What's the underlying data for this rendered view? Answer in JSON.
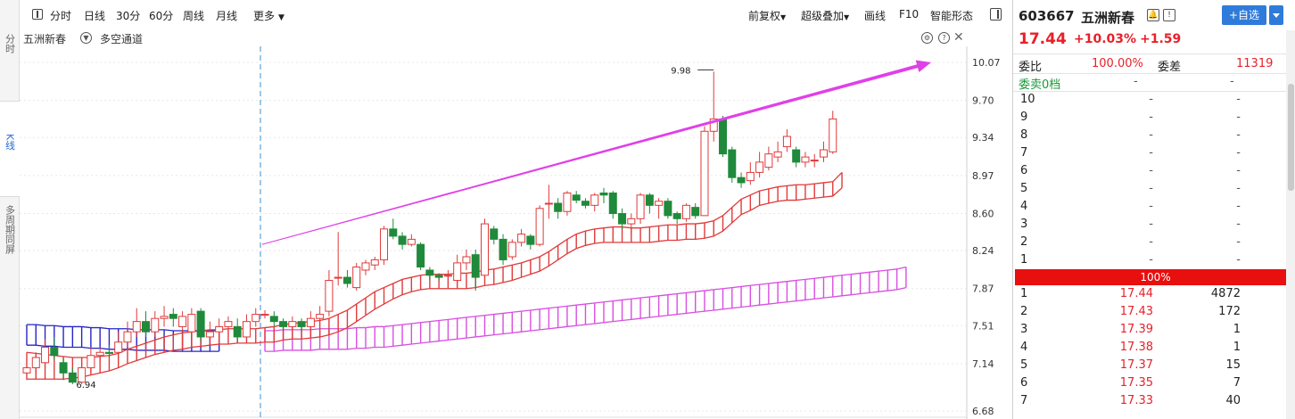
{
  "left_tabs": [
    {
      "label": "分时"
    },
    {
      "label": "K线"
    },
    {
      "label": "多周期同屏"
    }
  ],
  "toolbar": {
    "periods": [
      "分时",
      "日线",
      "30分",
      "60分",
      "周线",
      "月线"
    ],
    "more": "更多",
    "right_items": [
      "前复权",
      "超级叠加",
      "画线",
      "F10",
      "智能形态"
    ]
  },
  "sub_header": {
    "stock_name": "五洲新春",
    "indicator": "多空通道"
  },
  "chart_data": {
    "type": "candlestick",
    "y_axis_labels": [
      "10.07",
      "9.70",
      "9.34",
      "8.97",
      "8.60",
      "8.24",
      "7.87",
      "7.51",
      "7.14",
      "6.68"
    ],
    "ylim": [
      6.68,
      10.07
    ],
    "annotations": {
      "high": "9.98",
      "low": "6.94"
    },
    "candles": [
      {
        "o": 7.05,
        "c": 7.1,
        "h": 7.15,
        "l": 6.98
      },
      {
        "o": 7.1,
        "c": 7.2,
        "h": 7.25,
        "l": 7.05
      },
      {
        "o": 7.15,
        "c": 7.3,
        "h": 7.38,
        "l": 7.1
      },
      {
        "o": 7.3,
        "c": 7.22,
        "h": 7.4,
        "l": 7.18
      },
      {
        "o": 7.15,
        "c": 7.05,
        "h": 7.2,
        "l": 6.98
      },
      {
        "o": 7.05,
        "c": 6.96,
        "h": 7.1,
        "l": 6.94
      },
      {
        "o": 6.96,
        "c": 7.1,
        "h": 7.2,
        "l": 6.94
      },
      {
        "o": 7.1,
        "c": 7.22,
        "h": 7.3,
        "l": 7.05
      },
      {
        "o": 7.22,
        "c": 7.25,
        "h": 7.3,
        "l": 7.15
      },
      {
        "o": 7.25,
        "c": 7.24,
        "h": 7.32,
        "l": 7.2
      },
      {
        "o": 7.25,
        "c": 7.35,
        "h": 7.45,
        "l": 7.2
      },
      {
        "o": 7.35,
        "c": 7.45,
        "h": 7.55,
        "l": 7.3
      },
      {
        "o": 7.45,
        "c": 7.55,
        "h": 7.68,
        "l": 7.4
      },
      {
        "o": 7.55,
        "c": 7.45,
        "h": 7.65,
        "l": 7.4
      },
      {
        "o": 7.45,
        "c": 7.58,
        "h": 7.65,
        "l": 7.4
      },
      {
        "o": 7.58,
        "c": 7.6,
        "h": 7.7,
        "l": 7.5
      },
      {
        "o": 7.62,
        "c": 7.58,
        "h": 7.68,
        "l": 7.5
      },
      {
        "o": 7.5,
        "c": 7.6,
        "h": 7.65,
        "l": 7.45
      },
      {
        "o": 7.45,
        "c": 7.62,
        "h": 7.68,
        "l": 7.4
      },
      {
        "o": 7.65,
        "c": 7.4,
        "h": 7.68,
        "l": 7.35
      },
      {
        "o": 7.4,
        "c": 7.45,
        "h": 7.55,
        "l": 7.35
      },
      {
        "o": 7.45,
        "c": 7.5,
        "h": 7.58,
        "l": 7.4
      },
      {
        "o": 7.5,
        "c": 7.55,
        "h": 7.6,
        "l": 7.45
      },
      {
        "o": 7.5,
        "c": 7.4,
        "h": 7.58,
        "l": 7.35
      },
      {
        "o": 7.4,
        "c": 7.55,
        "h": 7.62,
        "l": 7.35
      },
      {
        "o": 7.55,
        "c": 7.62,
        "h": 7.68,
        "l": 7.5
      },
      {
        "o": 7.62,
        "c": 7.62,
        "h": 7.66,
        "l": 7.58
      },
      {
        "o": 7.6,
        "c": 7.55,
        "h": 7.65,
        "l": 7.5
      },
      {
        "o": 7.55,
        "c": 7.5,
        "h": 7.58,
        "l": 7.45
      },
      {
        "o": 7.5,
        "c": 7.55,
        "h": 7.6,
        "l": 7.45
      },
      {
        "o": 7.55,
        "c": 7.5,
        "h": 7.58,
        "l": 7.45
      },
      {
        "o": 7.5,
        "c": 7.58,
        "h": 7.65,
        "l": 7.45
      },
      {
        "o": 7.58,
        "c": 7.62,
        "h": 7.7,
        "l": 7.55
      },
      {
        "o": 7.65,
        "c": 7.95,
        "h": 8.05,
        "l": 7.6
      },
      {
        "o": 7.98,
        "c": 7.98,
        "h": 8.42,
        "l": 7.9
      },
      {
        "o": 7.98,
        "c": 7.92,
        "h": 8.05,
        "l": 7.88
      },
      {
        "o": 7.88,
        "c": 8.08,
        "h": 8.12,
        "l": 7.85
      },
      {
        "o": 8.05,
        "c": 8.12,
        "h": 8.15,
        "l": 8.0
      },
      {
        "o": 8.1,
        "c": 8.15,
        "h": 8.18,
        "l": 8.05
      },
      {
        "o": 8.15,
        "c": 8.45,
        "h": 8.48,
        "l": 8.1
      },
      {
        "o": 8.45,
        "c": 8.38,
        "h": 8.55,
        "l": 8.35
      },
      {
        "o": 8.38,
        "c": 8.3,
        "h": 8.42,
        "l": 8.25
      },
      {
        "o": 8.3,
        "c": 8.35,
        "h": 8.4,
        "l": 8.28
      },
      {
        "o": 8.3,
        "c": 8.08,
        "h": 8.32,
        "l": 8.05
      },
      {
        "o": 8.05,
        "c": 8.0,
        "h": 8.08,
        "l": 7.95
      },
      {
        "o": 8.0,
        "c": 7.98,
        "h": 8.02,
        "l": 7.95
      },
      {
        "o": 8.0,
        "c": 8.0,
        "h": 8.05,
        "l": 7.88
      },
      {
        "o": 7.95,
        "c": 8.12,
        "h": 8.2,
        "l": 7.92
      },
      {
        "o": 8.12,
        "c": 8.18,
        "h": 8.25,
        "l": 8.05
      },
      {
        "o": 8.2,
        "c": 7.98,
        "h": 8.25,
        "l": 7.85
      },
      {
        "o": 8.0,
        "c": 8.5,
        "h": 8.55,
        "l": 7.95
      },
      {
        "o": 8.45,
        "c": 8.35,
        "h": 8.48,
        "l": 8.3
      },
      {
        "o": 8.35,
        "c": 8.15,
        "h": 8.4,
        "l": 8.1
      },
      {
        "o": 8.18,
        "c": 8.32,
        "h": 8.35,
        "l": 8.15
      },
      {
        "o": 8.32,
        "c": 8.4,
        "h": 8.45,
        "l": 8.28
      },
      {
        "o": 8.38,
        "c": 8.3,
        "h": 8.4,
        "l": 8.25
      },
      {
        "o": 8.3,
        "c": 8.65,
        "h": 8.68,
        "l": 8.28
      },
      {
        "o": 8.7,
        "c": 8.7,
        "h": 8.88,
        "l": 8.55
      },
      {
        "o": 8.7,
        "c": 8.62,
        "h": 8.75,
        "l": 8.55
      },
      {
        "o": 8.62,
        "c": 8.8,
        "h": 8.82,
        "l": 8.58
      },
      {
        "o": 8.78,
        "c": 8.73,
        "h": 8.82,
        "l": 8.7
      },
      {
        "o": 8.72,
        "c": 8.68,
        "h": 8.75,
        "l": 8.65
      },
      {
        "o": 8.68,
        "c": 8.78,
        "h": 8.8,
        "l": 8.62
      },
      {
        "o": 8.8,
        "c": 8.78,
        "h": 8.85,
        "l": 8.7
      },
      {
        "o": 8.8,
        "c": 8.6,
        "h": 8.82,
        "l": 8.55
      },
      {
        "o": 8.6,
        "c": 8.5,
        "h": 8.65,
        "l": 8.45
      },
      {
        "o": 8.5,
        "c": 8.55,
        "h": 8.6,
        "l": 8.4
      },
      {
        "o": 8.55,
        "c": 8.78,
        "h": 8.8,
        "l": 8.5
      },
      {
        "o": 8.78,
        "c": 8.68,
        "h": 8.8,
        "l": 8.6
      },
      {
        "o": 8.68,
        "c": 8.72,
        "h": 8.75,
        "l": 8.55
      },
      {
        "o": 8.72,
        "c": 8.58,
        "h": 8.75,
        "l": 8.55
      },
      {
        "o": 8.6,
        "c": 8.55,
        "h": 8.62,
        "l": 8.5
      },
      {
        "o": 8.55,
        "c": 8.68,
        "h": 8.7,
        "l": 8.52
      },
      {
        "o": 8.66,
        "c": 8.58,
        "h": 8.7,
        "l": 8.55
      },
      {
        "o": 8.58,
        "c": 9.4,
        "h": 9.45,
        "l": 8.58
      },
      {
        "o": 9.4,
        "c": 9.52,
        "h": 9.98,
        "l": 9.3
      },
      {
        "o": 9.52,
        "c": 9.18,
        "h": 9.55,
        "l": 9.15
      },
      {
        "o": 9.22,
        "c": 8.95,
        "h": 9.25,
        "l": 8.9
      },
      {
        "o": 8.95,
        "c": 8.9,
        "h": 9.0,
        "l": 8.85
      },
      {
        "o": 8.92,
        "c": 9.0,
        "h": 9.1,
        "l": 8.88
      },
      {
        "o": 9.0,
        "c": 9.1,
        "h": 9.2,
        "l": 8.95
      },
      {
        "o": 9.05,
        "c": 9.18,
        "h": 9.25,
        "l": 9.02
      },
      {
        "o": 9.15,
        "c": 9.2,
        "h": 9.3,
        "l": 9.1
      },
      {
        "o": 9.25,
        "c": 9.35,
        "h": 9.42,
        "l": 9.2
      },
      {
        "o": 9.22,
        "c": 9.1,
        "h": 9.25,
        "l": 9.05
      },
      {
        "o": 9.1,
        "c": 9.15,
        "h": 9.2,
        "l": 9.05
      },
      {
        "o": 9.12,
        "c": 9.12,
        "h": 9.18,
        "l": 9.05
      },
      {
        "o": 9.15,
        "c": 9.22,
        "h": 9.3,
        "l": 9.1
      },
      {
        "o": 9.2,
        "c": 9.52,
        "h": 9.6,
        "l": 9.18
      }
    ],
    "channel_red_upper": [
      7.25,
      7.24,
      7.23,
      7.22,
      7.21,
      7.2,
      7.2,
      7.2,
      7.21,
      7.22,
      7.24,
      7.28,
      7.31,
      7.34,
      7.37,
      7.4,
      7.42,
      7.44,
      7.45,
      7.46,
      7.47,
      7.47,
      7.48,
      7.48,
      7.48,
      7.48,
      7.49,
      7.5,
      7.52,
      7.53,
      7.54,
      7.55,
      7.56,
      7.58,
      7.62,
      7.66,
      7.72,
      7.78,
      7.84,
      7.88,
      7.92,
      7.96,
      7.98,
      8.0,
      8.01,
      8.01,
      8.01,
      8.02,
      8.02,
      8.03,
      8.05,
      8.06,
      8.08,
      8.1,
      8.12,
      8.15,
      8.18,
      8.23,
      8.29,
      8.35,
      8.4,
      8.43,
      8.45,
      8.46,
      8.47,
      8.47,
      8.46,
      8.46,
      8.47,
      8.48,
      8.49,
      8.49,
      8.5,
      8.5,
      8.51,
      8.53,
      8.58,
      8.66,
      8.74,
      8.78,
      8.82,
      8.84,
      8.86,
      8.87,
      8.88,
      8.88,
      8.89,
      8.9,
      8.91,
      9.0
    ],
    "channel_red_lower": [
      6.99,
      6.99,
      6.99,
      6.99,
      6.99,
      7.0,
      7.01,
      7.03,
      7.05,
      7.07,
      7.1,
      7.14,
      7.17,
      7.2,
      7.23,
      7.25,
      7.27,
      7.28,
      7.3,
      7.31,
      7.32,
      7.33,
      7.33,
      7.34,
      7.34,
      7.34,
      7.35,
      7.35,
      7.37,
      7.38,
      7.38,
      7.39,
      7.4,
      7.42,
      7.45,
      7.49,
      7.55,
      7.61,
      7.67,
      7.72,
      7.77,
      7.81,
      7.84,
      7.86,
      7.87,
      7.87,
      7.87,
      7.87,
      7.87,
      7.88,
      7.9,
      7.91,
      7.93,
      7.95,
      7.98,
      8.01,
      8.04,
      8.09,
      8.15,
      8.21,
      8.26,
      8.29,
      8.31,
      8.32,
      8.32,
      8.32,
      8.32,
      8.32,
      8.32,
      8.33,
      8.34,
      8.34,
      8.35,
      8.35,
      8.36,
      8.38,
      8.43,
      8.51,
      8.59,
      8.63,
      8.68,
      8.7,
      8.72,
      8.73,
      8.73,
      8.74,
      8.75,
      8.76,
      8.77,
      8.85
    ],
    "channel_blue_upper": [
      7.52,
      7.52,
      7.51,
      7.51,
      7.5,
      7.5,
      7.5,
      7.49,
      7.49,
      7.48,
      7.48,
      7.48,
      7.47,
      7.47,
      7.47,
      7.47,
      7.46,
      7.46,
      7.46,
      7.46,
      7.46,
      7.46
    ],
    "channel_blue_lower": [
      7.32,
      7.32,
      7.31,
      7.31,
      7.3,
      7.3,
      7.3,
      7.29,
      7.29,
      7.28,
      7.28,
      7.28,
      7.27,
      7.27,
      7.27,
      7.27,
      7.26,
      7.26,
      7.26,
      7.26,
      7.26,
      7.26
    ],
    "channel_pink_upper": [
      7.46,
      7.46,
      7.47,
      7.47,
      7.47,
      7.47,
      7.48,
      7.48,
      7.48,
      7.48,
      7.49,
      7.49,
      7.5,
      7.5,
      7.51,
      7.52,
      7.53,
      7.54,
      7.55,
      7.56,
      7.57,
      7.58,
      7.59,
      7.6,
      7.61,
      7.62,
      7.63,
      7.64,
      7.65,
      7.66,
      7.67,
      7.68,
      7.69,
      7.7,
      7.71,
      7.72,
      7.73,
      7.74,
      7.75,
      7.76,
      7.77,
      7.78,
      7.79,
      7.8,
      7.81,
      7.82,
      7.83,
      7.84,
      7.85,
      7.86,
      7.87,
      7.88,
      7.89,
      7.9,
      7.91,
      7.92,
      7.93,
      7.94,
      7.95,
      7.96,
      7.97,
      7.98,
      7.99,
      8.0,
      8.01,
      8.02,
      8.03,
      8.04,
      8.05,
      8.06,
      8.08
    ],
    "channel_pink_lower": [
      7.26,
      7.26,
      7.27,
      7.27,
      7.27,
      7.27,
      7.28,
      7.28,
      7.28,
      7.28,
      7.29,
      7.29,
      7.3,
      7.3,
      7.31,
      7.32,
      7.33,
      7.34,
      7.35,
      7.36,
      7.37,
      7.38,
      7.39,
      7.4,
      7.41,
      7.42,
      7.43,
      7.44,
      7.45,
      7.46,
      7.47,
      7.48,
      7.49,
      7.5,
      7.51,
      7.52,
      7.53,
      7.54,
      7.55,
      7.56,
      7.57,
      7.58,
      7.59,
      7.6,
      7.61,
      7.62,
      7.63,
      7.64,
      7.65,
      7.66,
      7.67,
      7.68,
      7.69,
      7.7,
      7.71,
      7.72,
      7.73,
      7.74,
      7.75,
      7.76,
      7.77,
      7.78,
      7.79,
      7.8,
      7.81,
      7.82,
      7.83,
      7.84,
      7.85,
      7.86,
      7.88
    ],
    "trend_arrow": {
      "from_price": 8.3,
      "to_price": 10.07
    },
    "colors": {
      "up": "#e03a3a",
      "down": "#1f8a3b",
      "channel_red": "#e03a3a",
      "channel_blue": "#2525c8",
      "channel_pink": "#d84fe0",
      "arrow": "#e040e8",
      "grid": "#e8e8e8"
    }
  },
  "quote": {
    "code": "603667",
    "name": "五洲新春",
    "price": "17.44",
    "pct": "+10.03%",
    "change": "+1.59",
    "add_button": "+自选",
    "weibi_label": "委比",
    "weibi_value": "100.00%",
    "weicha_label": "委差",
    "weicha_value": "11319",
    "sell_header": "委卖0档",
    "dash": "-",
    "ratio_bar": "100%"
  },
  "sell_levels": [
    "10",
    "9",
    "8",
    "7",
    "6",
    "5",
    "4",
    "3",
    "2",
    "1"
  ],
  "buy_levels": [
    {
      "level": "1",
      "price": "17.44",
      "volume": "4872"
    },
    {
      "level": "2",
      "price": "17.43",
      "volume": "172"
    },
    {
      "level": "3",
      "price": "17.39",
      "volume": "1"
    },
    {
      "level": "4",
      "price": "17.38",
      "volume": "1"
    },
    {
      "level": "5",
      "price": "17.37",
      "volume": "15"
    },
    {
      "level": "6",
      "price": "17.35",
      "volume": "7"
    },
    {
      "level": "7",
      "price": "17.33",
      "volume": "40"
    }
  ],
  "colors": {
    "red": "#e8202a",
    "green": "#1a9a3a",
    "blue": "#2f7bd9"
  }
}
